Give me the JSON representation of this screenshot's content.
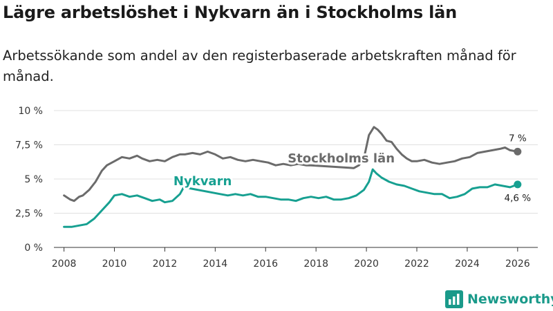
{
  "brand": {
    "name": "Newsworthy",
    "color": "#1a9a8a",
    "icon": "newsworthy-logo-icon"
  },
  "chart_data": {
    "type": "line",
    "title": "Lägre arbetslöshet i Nykvarn än i Stockholms län",
    "subtitle": "Arbetssökande som andel av den registerbaserade arbetskraften månad för månad.",
    "xlabel": "",
    "ylabel": "",
    "xlim": [
      2007.6,
      2026.8
    ],
    "ylim": [
      0,
      10
    ],
    "grid": true,
    "x_ticks": [
      {
        "value": 2008,
        "label": "2008"
      },
      {
        "value": 2010,
        "label": "2010"
      },
      {
        "value": 2012,
        "label": "2012"
      },
      {
        "value": 2014,
        "label": "2014"
      },
      {
        "value": 2016,
        "label": "2016"
      },
      {
        "value": 2018,
        "label": "2018"
      },
      {
        "value": 2020,
        "label": "2020"
      },
      {
        "value": 2022,
        "label": "2022"
      },
      {
        "value": 2024,
        "label": "2024"
      },
      {
        "value": 2026,
        "label": "2026"
      }
    ],
    "y_ticks": [
      {
        "value": 0,
        "label": "0 %"
      },
      {
        "value": 2.5,
        "label": "2,5 %"
      },
      {
        "value": 5,
        "label": "5 %"
      },
      {
        "value": 7.5,
        "label": "7,5 %"
      },
      {
        "value": 10,
        "label": "10 %"
      }
    ],
    "series": [
      {
        "name": "Stockholms län",
        "color": "#6b6b6b",
        "end_label": "7 %",
        "x": [
          2008.0,
          2008.25,
          2008.4,
          2008.6,
          2008.75,
          2009.0,
          2009.25,
          2009.5,
          2009.7,
          2010.0,
          2010.3,
          2010.6,
          2010.9,
          2011.1,
          2011.4,
          2011.7,
          2012.0,
          2012.3,
          2012.6,
          2012.8,
          2013.1,
          2013.4,
          2013.7,
          2014.0,
          2014.3,
          2014.6,
          2014.9,
          2015.2,
          2015.5,
          2015.8,
          2016.1,
          2016.4,
          2016.7,
          2017.0,
          2017.3,
          2017.6,
          2017.8,
          2019.5,
          2019.7,
          2019.9,
          2020.1,
          2020.3,
          2020.45,
          2020.6,
          2020.8,
          2021.0,
          2021.2,
          2021.4,
          2021.6,
          2021.8,
          2022.0,
          2022.3,
          2022.6,
          2022.9,
          2023.2,
          2023.5,
          2023.8,
          2024.1,
          2024.4,
          2024.7,
          2025.0,
          2025.3,
          2025.5,
          2025.7,
          2026.0
        ],
        "values": [
          3.8,
          3.5,
          3.4,
          3.7,
          3.8,
          4.2,
          4.8,
          5.6,
          6.0,
          6.3,
          6.6,
          6.5,
          6.7,
          6.5,
          6.3,
          6.4,
          6.3,
          6.6,
          6.8,
          6.8,
          6.9,
          6.8,
          7.0,
          6.8,
          6.5,
          6.6,
          6.4,
          6.3,
          6.4,
          6.3,
          6.2,
          6.0,
          6.1,
          6.0,
          6.1,
          6.0,
          6.0,
          5.8,
          6.0,
          6.5,
          8.2,
          8.8,
          8.6,
          8.3,
          7.8,
          7.7,
          7.2,
          6.8,
          6.5,
          6.3,
          6.3,
          6.4,
          6.2,
          6.1,
          6.2,
          6.3,
          6.5,
          6.6,
          6.9,
          7.0,
          7.1,
          7.2,
          7.3,
          7.1,
          7.0
        ]
      },
      {
        "name": "Nykvarn",
        "color": "#17a091",
        "end_label": "4,6 %",
        "x": [
          2008.0,
          2008.3,
          2008.6,
          2008.9,
          2009.2,
          2009.5,
          2009.8,
          2010.0,
          2010.3,
          2010.6,
          2010.9,
          2011.2,
          2011.5,
          2011.8,
          2012.0,
          2012.3,
          2012.6,
          2012.75,
          2014.2,
          2014.5,
          2014.8,
          2015.1,
          2015.4,
          2015.7,
          2016.0,
          2016.3,
          2016.6,
          2016.9,
          2017.2,
          2017.5,
          2017.8,
          2018.1,
          2018.4,
          2018.7,
          2019.0,
          2019.3,
          2019.6,
          2019.9,
          2020.1,
          2020.25,
          2020.4,
          2020.6,
          2020.9,
          2021.2,
          2021.5,
          2021.8,
          2022.1,
          2022.4,
          2022.7,
          2023.0,
          2023.3,
          2023.6,
          2023.9,
          2024.2,
          2024.5,
          2024.8,
          2025.1,
          2025.4,
          2025.7,
          2026.0
        ],
        "values": [
          1.5,
          1.5,
          1.6,
          1.7,
          2.1,
          2.7,
          3.3,
          3.8,
          3.9,
          3.7,
          3.8,
          3.6,
          3.4,
          3.5,
          3.3,
          3.4,
          3.9,
          4.4,
          3.9,
          3.8,
          3.9,
          3.8,
          3.9,
          3.7,
          3.7,
          3.6,
          3.5,
          3.5,
          3.4,
          3.6,
          3.7,
          3.6,
          3.7,
          3.5,
          3.5,
          3.6,
          3.8,
          4.2,
          4.8,
          5.7,
          5.4,
          5.1,
          4.8,
          4.6,
          4.5,
          4.3,
          4.1,
          4.0,
          3.9,
          3.9,
          3.6,
          3.7,
          3.9,
          4.3,
          4.4,
          4.4,
          4.6,
          4.5,
          4.4,
          4.6
        ]
      }
    ],
    "annotations": [
      {
        "series": "Stockholms län",
        "text": "Stockholms län",
        "x": 2019.0,
        "y": 6.2
      },
      {
        "series": "Nykvarn",
        "text": "Nykvarn",
        "x": 2013.5,
        "y": 4.55
      }
    ]
  }
}
